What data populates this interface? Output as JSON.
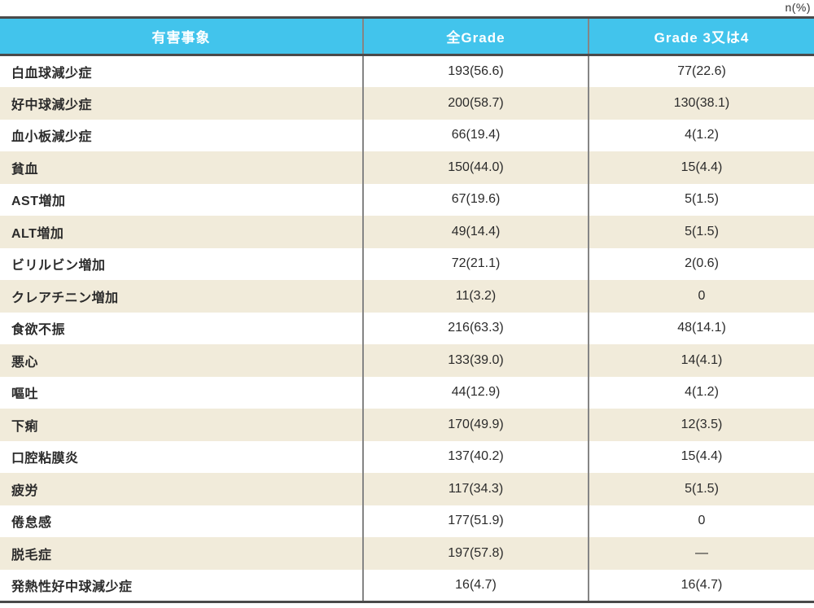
{
  "unit_label": "n(%)",
  "colors": {
    "header_bg": "#42c4ec",
    "header_text": "#ffffff",
    "row_alt_bg": "#f1ebda",
    "row_bg": "#ffffff",
    "border_dark": "#4a4a4a",
    "divider": "#858585",
    "text": "#2b2b2b"
  },
  "table": {
    "headers": [
      "有害事象",
      "全Grade",
      "Grade 3又は4"
    ],
    "rows": [
      {
        "label": "白血球減少症",
        "all_grade": "193(56.6)",
        "grade34": "77(22.6)"
      },
      {
        "label": "好中球減少症",
        "all_grade": "200(58.7)",
        "grade34": "130(38.1)"
      },
      {
        "label": "血小板減少症",
        "all_grade": "66(19.4)",
        "grade34": "4(1.2)"
      },
      {
        "label": "貧血",
        "all_grade": "150(44.0)",
        "grade34": "15(4.4)"
      },
      {
        "label": "AST増加",
        "all_grade": "67(19.6)",
        "grade34": "5(1.5)"
      },
      {
        "label": "ALT増加",
        "all_grade": "49(14.4)",
        "grade34": "5(1.5)"
      },
      {
        "label": "ビリルビン増加",
        "all_grade": "72(21.1)",
        "grade34": "2(0.6)"
      },
      {
        "label": "クレアチニン増加",
        "all_grade": "11(3.2)",
        "grade34": "0"
      },
      {
        "label": "食欲不振",
        "all_grade": "216(63.3)",
        "grade34": "48(14.1)"
      },
      {
        "label": "悪心",
        "all_grade": "133(39.0)",
        "grade34": "14(4.1)"
      },
      {
        "label": "嘔吐",
        "all_grade": "44(12.9)",
        "grade34": "4(1.2)"
      },
      {
        "label": "下痢",
        "all_grade": "170(49.9)",
        "grade34": "12(3.5)"
      },
      {
        "label": "口腔粘膜炎",
        "all_grade": "137(40.2)",
        "grade34": "15(4.4)"
      },
      {
        "label": "疲労",
        "all_grade": "117(34.3)",
        "grade34": "5(1.5)"
      },
      {
        "label": "倦怠感",
        "all_grade": "177(51.9)",
        "grade34": "0"
      },
      {
        "label": "脱毛症",
        "all_grade": "197(57.8)",
        "grade34": "—"
      },
      {
        "label": "発熱性好中球減少症",
        "all_grade": "16(4.7)",
        "grade34": "16(4.7)"
      }
    ]
  }
}
